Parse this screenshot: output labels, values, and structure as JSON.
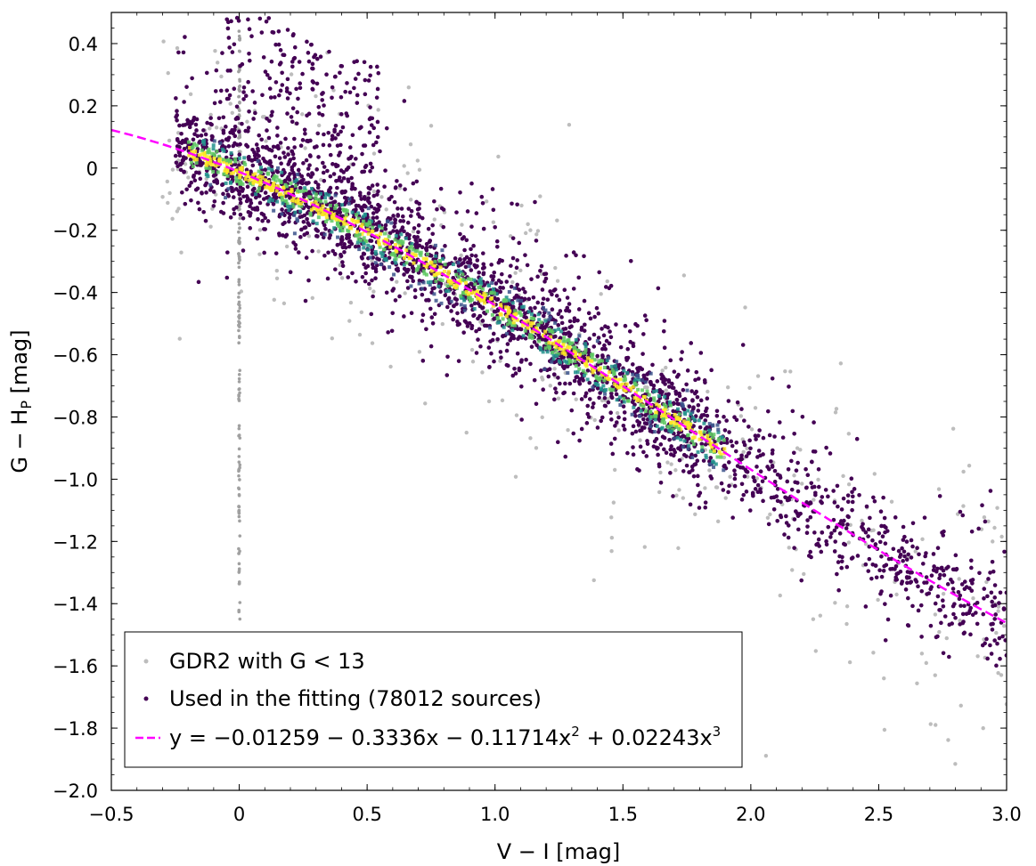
{
  "chart_data": {
    "type": "scatter",
    "xlabel": "V − I [mag]",
    "ylabel": "G − H",
    "ylabel_sub": "P",
    "ylabel_unit": " [mag]",
    "xlim": [
      -0.5,
      3.0
    ],
    "ylim": [
      -2.0,
      0.5
    ],
    "grid": false,
    "legend_position": "bottom-left",
    "x_ticks": [
      -0.5,
      0.0,
      0.5,
      1.0,
      1.5,
      2.0,
      2.5,
      3.0
    ],
    "x_tick_labels": [
      "−0.5",
      "0",
      "0.5",
      "1.0",
      "1.5",
      "2.0",
      "2.5",
      "3.0"
    ],
    "y_ticks": [
      0.4,
      0.2,
      0.0,
      -0.2,
      -0.4,
      -0.6,
      -0.8,
      -1.0,
      -1.2,
      -1.4,
      -1.6,
      -1.8,
      -2.0
    ],
    "y_tick_labels": [
      "0.4",
      "0.2",
      "0",
      "−0.2",
      "−0.4",
      "−0.6",
      "−0.8",
      "−1.0",
      "−1.2",
      "−1.4",
      "−1.6",
      "−1.8",
      "−2.0"
    ],
    "series": [
      {
        "name": "GDR2 with G < 13",
        "kind": "scatter",
        "color": "#bdbdbd",
        "x_range": [
          -0.3,
          3.0
        ],
        "note": "broad scatter of sources plus a vertical column at V−I = 0"
      },
      {
        "name": "Used in the fitting (78012 sources)",
        "kind": "scatter-density",
        "color": "#440154",
        "colormap": [
          "#440154",
          "#3b528b",
          "#21918c",
          "#5ec962",
          "#fde725"
        ],
        "x_range": [
          -0.35,
          3.0
        ],
        "sources": 78012
      },
      {
        "name": "y = −0.01259 − 0.3336x − 0.11714x² + 0.02243x³",
        "kind": "fit-line",
        "color": "#ff00ff",
        "linestyle": "dashed",
        "coefficients": [
          -0.01259,
          -0.3336,
          -0.11714,
          0.02243
        ],
        "x_range": [
          -0.5,
          3.0
        ]
      }
    ],
    "legend": [
      {
        "label": "GDR2 with G < 13",
        "marker": "grey-dot"
      },
      {
        "label": "Used in the fitting (78012 sources)",
        "marker": "purple-dot"
      },
      {
        "label_main": "y = −0.01259 − 0.3336x − 0.11714x",
        "sup1": "2",
        "label_mid": " + 0.02243x",
        "sup2": "3",
        "marker": "magenta-dash"
      }
    ]
  }
}
